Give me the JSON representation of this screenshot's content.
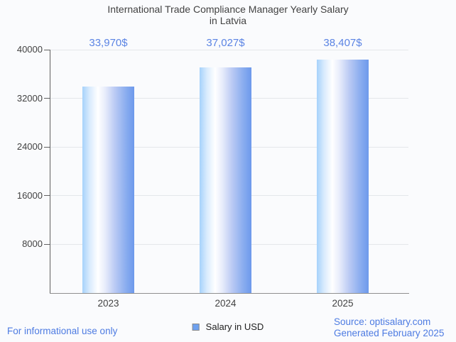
{
  "page": {
    "footer_left": "For informational use only",
    "footer_right_line1": "Source: optisalary.com",
    "footer_right_line2": "Generated February 2025",
    "footer_color": "#4d7be2",
    "background": "#fafbfd"
  },
  "chart_data": {
    "type": "bar",
    "title": "International Trade Compliance Manager Yearly Salary in Latvia",
    "title_line1": "International Trade Compliance Manager Yearly Salary",
    "title_line2": "in Latvia",
    "categories": [
      "2023",
      "2024",
      "2025"
    ],
    "values": [
      33970,
      37027,
      38407
    ],
    "value_labels": [
      "33,970$",
      "37,027$",
      "38,407$"
    ],
    "xlabel": "",
    "ylabel": "",
    "ylim": [
      0,
      40000
    ],
    "yticks": [
      8000,
      16000,
      24000,
      32000,
      40000
    ],
    "grid": true,
    "legend": {
      "label": "Salary in USD",
      "position": "bottom-center"
    },
    "colors": {
      "value_label": "#5b84e4",
      "bar_gradient_left": "#a6d2fb",
      "bar_gradient_mid": "#ffffff",
      "bar_gradient_right": "#6d99ec",
      "axis_text": "#424242",
      "gridline": "#e4e7ea",
      "axis_line": "#616161",
      "baseline": "#8f8f8f",
      "footer_blue": "#4d7be2"
    }
  }
}
